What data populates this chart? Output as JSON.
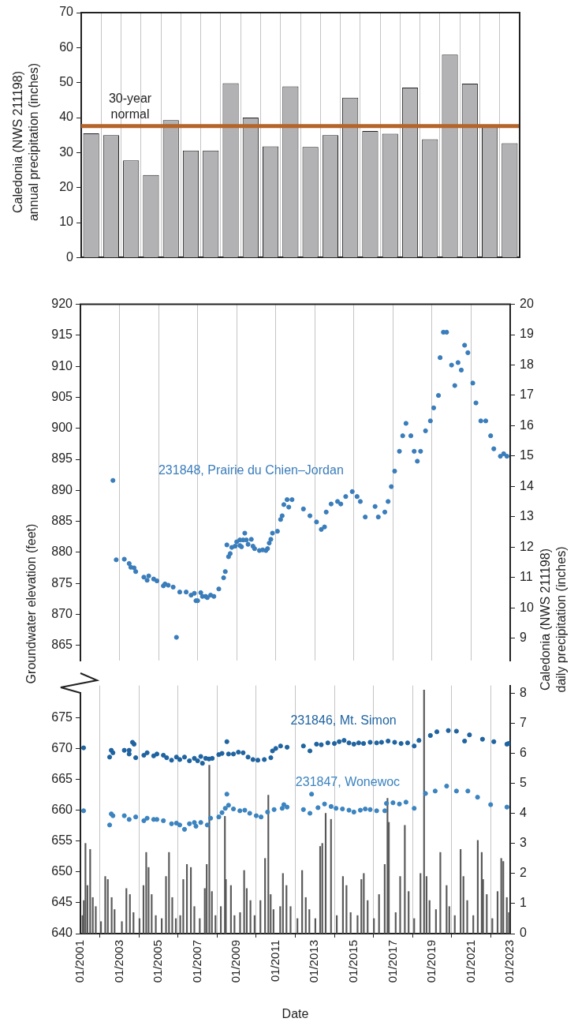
{
  "chart_data": [
    {
      "type": "bar",
      "ylabel": "Caledonia (NWS 211198)\nannual precipitation (inches)",
      "categories": [
        null,
        null,
        null,
        null,
        null,
        null,
        null,
        null,
        null,
        null,
        null,
        null,
        null,
        null,
        null,
        null,
        null,
        null,
        null,
        null,
        null,
        null
      ],
      "values": [
        35.5,
        35,
        27.8,
        23.6,
        39.3,
        30.6,
        30.6,
        49.8,
        40,
        31.8,
        48.9,
        31.6,
        35,
        45.7,
        36.2,
        35.4,
        48.6,
        33.8,
        58,
        49.7,
        37.5,
        32.7
      ],
      "color": "#b2b2b5",
      "ylim": [
        0,
        70
      ],
      "yticks": [
        0,
        10,
        20,
        30,
        40,
        50,
        60,
        70
      ],
      "grid": "x",
      "ref_lines": [
        {
          "axis": "y",
          "value": 37.6,
          "label": "30-year normal",
          "color": "#b5642a"
        }
      ]
    },
    {
      "type": "scatter",
      "ylabel": "Groundwater elevation (feet)",
      "y2label": "Caledonia (NWS 211198)\ndaily precipitation (inches)",
      "xlim": [
        "2001-01",
        "2023-01"
      ],
      "xticks": [
        "2001-01",
        "2003-01",
        "2005-01",
        "2007-01",
        "2009-01",
        "2011-01",
        "2013-01",
        "2015-01",
        "2017-01",
        "2019-01",
        "2021-01",
        "2023-01"
      ],
      "ylim": [
        862.5,
        920
      ],
      "yticks": [
        865,
        870,
        875,
        880,
        885,
        890,
        895,
        900,
        905,
        910,
        915,
        920
      ],
      "y2lim": [
        8.25,
        20
      ],
      "y2ticks": [
        9,
        10,
        11,
        12,
        13,
        14,
        15,
        16,
        17,
        18,
        19,
        20
      ],
      "tick_labels": "y",
      "grid": "x",
      "marker": "circle",
      "series": [
        {
          "name": "231848, Prairie du Chien–Jordan",
          "color": "#3a7dbb",
          "x": [
            "2002-09",
            "2002-11",
            "2003-04",
            "2003-07",
            "2003-08",
            "2003-10",
            "2003-11",
            "2004-04",
            "2004-06",
            "2004-07",
            "2004-10",
            "2004-12",
            "2005-04",
            "2005-05",
            "2005-07",
            "2005-10",
            "2005-12",
            "2006-02",
            "2006-06",
            "2006-09",
            "2006-11",
            "2006-12",
            "2007-01",
            "2007-03",
            "2007-04",
            "2007-06",
            "2007-07",
            "2007-09",
            "2007-11",
            "2008-02",
            "2008-05",
            "2008-06",
            "2008-07",
            "2008-08",
            "2008-09",
            "2008-10",
            "2008-12",
            "2009-01",
            "2009-03",
            "2009-03",
            "2009-04",
            "2009-05",
            "2009-06",
            "2009-07",
            "2009-08",
            "2009-10",
            "2009-11",
            "2009-12",
            "2010-03",
            "2010-05",
            "2010-07",
            "2010-08",
            "2010-09",
            "2010-10",
            "2010-11",
            "2011-02",
            "2011-04",
            "2011-05",
            "2011-06",
            "2011-08",
            "2011-09",
            "2011-11",
            "2012-06",
            "2012-10",
            "2013-02",
            "2013-05",
            "2013-07",
            "2013-08",
            "2013-11",
            "2014-03",
            "2014-05",
            "2014-08",
            "2014-12",
            "2015-03",
            "2015-05",
            "2015-08",
            "2016-02",
            "2016-04",
            "2016-08",
            "2016-10",
            "2016-12",
            "2017-02",
            "2017-05",
            "2017-07",
            "2017-09",
            "2017-12",
            "2018-02",
            "2018-04",
            "2018-06",
            "2018-09",
            "2018-12",
            "2019-02",
            "2019-05",
            "2019-06",
            "2019-08",
            "2019-10",
            "2020-01",
            "2020-03",
            "2020-05",
            "2020-07",
            "2020-09",
            "2020-11",
            "2021-02",
            "2021-04",
            "2021-07",
            "2021-10",
            "2022-01",
            "2022-03",
            "2022-07",
            "2022-09",
            "2022-11"
          ],
          "values": [
            891.6,
            878.8,
            878.9,
            878.2,
            877.6,
            877.5,
            876.9,
            876,
            875.5,
            876.2,
            875.7,
            875.4,
            874.6,
            874.9,
            874.7,
            874.4,
            866.3,
            873.6,
            873.6,
            873.1,
            873.4,
            872.2,
            872.2,
            873.5,
            872.9,
            872.9,
            872.7,
            873.1,
            872.9,
            874.1,
            875.9,
            876.9,
            881.2,
            879.3,
            879.8,
            880.8,
            881,
            881.7,
            881.1,
            882,
            880.9,
            882,
            883.1,
            882,
            881.3,
            882.1,
            881,
            880.6,
            880.3,
            880.4,
            880.3,
            880.6,
            881.5,
            882.1,
            883.1,
            883.4,
            885.3,
            885.9,
            887.7,
            888.5,
            887.3,
            888.5,
            887,
            885.9,
            884.9,
            883.7,
            884.1,
            886.5,
            887.8,
            888.2,
            887.8,
            889,
            889.8,
            889,
            888.2,
            885.7,
            887.4,
            885.7,
            886.5,
            888.2,
            890.6,
            893.1,
            896.3,
            898.8,
            900.8,
            898.8,
            896.3,
            894.7,
            896.3,
            899.6,
            901.2,
            903.3,
            905.3,
            911.4,
            915.5,
            915.5,
            910.2,
            906.9,
            910.6,
            909.4,
            913.4,
            912.2,
            907.3,
            904.1,
            901.2,
            901.2,
            898.8,
            896.7,
            895.5,
            895.9,
            895.5
          ]
        }
      ]
    },
    {
      "type": "scatter",
      "xlabel": "Date",
      "xlim": [
        "2001-01",
        "2023-01"
      ],
      "xticks": [
        {
          "value": "2001-01",
          "label": "01/2001"
        },
        {
          "value": "2003-01",
          "label": "01/2003"
        },
        {
          "value": "2005-01",
          "label": "01/2005"
        },
        {
          "value": "2007-01",
          "label": "01/2007"
        },
        {
          "value": "2009-01",
          "label": "01/2009"
        },
        {
          "value": "2011-01",
          "label": "01/2011"
        },
        {
          "value": "2013-01",
          "label": "01/2013"
        },
        {
          "value": "2015-01",
          "label": "01/2015"
        },
        {
          "value": "2017-01",
          "label": "01/2017"
        },
        {
          "value": "2019-01",
          "label": "01/2019"
        },
        {
          "value": "2021-01",
          "label": "01/2021"
        },
        {
          "value": "2023-01",
          "label": "01/2023"
        }
      ],
      "ylim": [
        640,
        680.2
      ],
      "yticks": [
        640,
        645,
        650,
        655,
        660,
        665,
        670,
        675
      ],
      "y2lim": [
        0,
        8.25
      ],
      "y2ticks": [
        0,
        1,
        2,
        3,
        4,
        5,
        6,
        7,
        8
      ],
      "grid": "x",
      "marker": "circle",
      "series": [
        {
          "name": "231846, Mt. Simon",
          "color": "#1f64a0",
          "x": [
            "2001-03",
            "2002-07",
            "2002-08",
            "2002-09",
            "2003-04",
            "2003-07",
            "2003-07",
            "2003-09",
            "2003-10",
            "2003-11",
            "2004-04",
            "2004-06",
            "2004-10",
            "2004-12",
            "2005-04",
            "2005-06",
            "2005-09",
            "2005-12",
            "2006-02",
            "2006-05",
            "2006-08",
            "2006-11",
            "2007-01",
            "2007-03",
            "2007-04",
            "2007-06",
            "2007-08",
            "2007-10",
            "2008-02",
            "2008-04",
            "2008-07",
            "2008-08",
            "2008-11",
            "2009-02",
            "2009-05",
            "2009-08",
            "2009-11",
            "2010-02",
            "2010-06",
            "2010-10",
            "2010-11",
            "2011-01",
            "2011-04",
            "2011-08",
            "2012-06",
            "2012-10",
            "2013-02",
            "2013-05",
            "2013-09",
            "2014-01",
            "2014-04",
            "2014-07",
            "2014-10",
            "2015-01",
            "2015-04",
            "2015-07",
            "2015-11",
            "2016-03",
            "2016-06",
            "2016-10",
            "2017-02",
            "2017-06",
            "2017-10",
            "2018-02",
            "2018-05",
            "2018-12",
            "2019-04",
            "2019-11",
            "2020-04",
            "2020-09",
            "2020-12",
            "2021-08",
            "2022-03",
            "2022-11",
            "2022-12"
          ],
          "values": [
            670.1,
            668.6,
            669.7,
            669.3,
            669.7,
            669.7,
            669.1,
            671,
            670.7,
            668.5,
            668.9,
            669.3,
            668.8,
            669.1,
            668.9,
            668.5,
            668.1,
            668.6,
            668.2,
            668.6,
            668,
            668.4,
            668,
            668.7,
            667.6,
            668.4,
            668.3,
            668.4,
            669,
            669.2,
            671.1,
            669.1,
            669.1,
            669.4,
            669.3,
            668.6,
            668.2,
            668.1,
            668.2,
            668.5,
            669.6,
            670,
            670.4,
            670.2,
            670.4,
            669.6,
            670.7,
            670.6,
            670.9,
            670.8,
            671.1,
            671.3,
            670.9,
            670.7,
            670.9,
            670.8,
            671,
            670.9,
            671,
            671.2,
            671,
            670.8,
            670.9,
            670.4,
            671.3,
            672.1,
            672.7,
            672.9,
            672.8,
            671.2,
            672.2,
            671.5,
            671.1,
            670.7,
            670.8
          ]
        },
        {
          "name": "231847, Wonewoc",
          "color": "#3b84c0",
          "x": [
            "2001-03",
            "2002-07",
            "2002-08",
            "2002-09",
            "2003-04",
            "2003-07",
            "2003-11",
            "2004-04",
            "2004-06",
            "2004-10",
            "2004-12",
            "2005-04",
            "2005-09",
            "2005-12",
            "2006-02",
            "2006-05",
            "2006-08",
            "2006-11",
            "2006-12",
            "2007-03",
            "2007-07",
            "2007-09",
            "2008-02",
            "2008-04",
            "2008-06",
            "2008-07",
            "2008-08",
            "2008-11",
            "2009-03",
            "2009-06",
            "2009-09",
            "2010-01",
            "2010-04",
            "2010-08",
            "2010-12",
            "2011-05",
            "2011-06",
            "2011-08",
            "2012-06",
            "2012-10",
            "2012-11",
            "2013-03",
            "2013-07",
            "2013-11",
            "2014-02",
            "2014-06",
            "2014-10",
            "2015-01",
            "2015-05",
            "2015-08",
            "2015-11",
            "2016-03",
            "2016-08",
            "2016-09",
            "2017-01",
            "2017-05",
            "2017-09",
            "2018-02",
            "2018-09",
            "2019-03",
            "2019-10",
            "2020-04",
            "2020-11",
            "2021-05",
            "2022-01",
            "2022-11"
          ],
          "values": [
            659.9,
            657.6,
            659.4,
            659.1,
            659.1,
            658.5,
            658.9,
            658.3,
            658.7,
            658.5,
            658.5,
            658.3,
            657.8,
            657.9,
            657.6,
            656.9,
            657.8,
            658,
            657.4,
            658,
            657.6,
            658.7,
            658.9,
            659.6,
            660.3,
            662.6,
            660.8,
            660.2,
            659.9,
            660,
            659.5,
            659.1,
            658.9,
            659.7,
            660.1,
            660.3,
            660.9,
            660.5,
            660.1,
            659.5,
            662.6,
            660.4,
            661,
            660.6,
            660.3,
            660.2,
            660,
            659.7,
            660,
            660.2,
            660.1,
            659.9,
            659.9,
            661.1,
            661.2,
            661,
            661.3,
            660.3,
            662.7,
            663.1,
            663.9,
            663.1,
            663.1,
            662.1,
            660.9,
            660.5
          ]
        },
        {
          "type": "bar",
          "axis": "y2",
          "color": "#595959",
          "x": [
            "2001-02-10",
            "2001-03-05",
            "2001-04-05",
            "2001-05-12",
            "2001-07-02",
            "2001-08-20",
            "2001-10-15",
            "2002-01-20",
            "2002-04-10",
            "2002-05-28",
            "2002-08-08",
            "2002-10-01",
            "2003-02-15",
            "2003-05-10",
            "2003-07-15",
            "2003-09-20",
            "2004-01-10",
            "2004-03-25",
            "2004-05-15",
            "2004-06-28",
            "2004-08-25",
            "2004-11-10",
            "2005-03-01",
            "2005-05-20",
            "2005-07-15",
            "2005-09-14",
            "2005-11-20",
            "2006-02-10",
            "2006-04-08",
            "2006-06-15",
            "2006-08-28",
            "2006-11-01",
            "2007-02-10",
            "2007-05-15",
            "2007-06-20",
            "2007-08-08",
            "2007-09-25",
            "2007-12-01",
            "2008-03-10",
            "2008-05-25",
            "2008-06-12",
            "2008-09-15",
            "2008-11-20",
            "2009-03-05",
            "2009-05-20",
            "2009-07-08",
            "2009-09-15",
            "2009-12-01",
            "2010-03-20",
            "2010-06-15",
            "2010-08-15",
            "2010-09-28",
            "2010-11-20",
            "2011-03-25",
            "2011-05-15",
            "2011-07-20",
            "2011-10-05",
            "2012-02-10",
            "2012-05-08",
            "2012-07-15",
            "2012-09-20",
            "2013-01-10",
            "2013-04-10",
            "2013-05-20",
            "2013-07-22",
            "2013-10-30",
            "2014-02-15",
            "2014-06-10",
            "2014-08-15",
            "2014-11-01",
            "2015-03-10",
            "2015-05-20",
            "2015-07-05",
            "2015-09-15",
            "2016-01-10",
            "2016-04-15",
            "2016-07-30",
            "2016-09-20",
            "2016-10-15",
            "2017-02-20",
            "2017-05-15",
            "2017-08-10",
            "2017-10-20",
            "2018-02-01",
            "2018-05-30",
            "2018-08-05",
            "2018-09-20",
            "2018-11-15",
            "2019-03-15",
            "2019-06-05",
            "2019-09-30",
            "2019-11-20",
            "2020-03-01",
            "2020-06-18",
            "2020-08-10",
            "2020-10-20",
            "2021-02-10",
            "2021-05-05",
            "2021-07-18",
            "2021-08-12",
            "2021-10-20",
            "2022-02-01",
            "2022-05-10",
            "2022-07-18",
            "2022-08-25",
            "2022-10-30",
            "2022-12-10"
          ],
          "values": [
            0.6,
            1.1,
            3,
            1.6,
            2.8,
            1.2,
            0.9,
            0.4,
            1.9,
            1.8,
            1.2,
            0.8,
            0.4,
            1.5,
            1.3,
            0.7,
            0.5,
            1.6,
            2.7,
            2.2,
            1.3,
            0.6,
            0.5,
            1.9,
            2.7,
            1.2,
            0.5,
            0.6,
            1.8,
            2.3,
            2.2,
            0.9,
            0.5,
            1.5,
            2.3,
            5.6,
            1.4,
            0.6,
            0.9,
            3.9,
            1.8,
            1.6,
            0.6,
            0.7,
            2.1,
            1.5,
            1.1,
            0.6,
            1.1,
            2.5,
            4.6,
            1.3,
            0.8,
            0.9,
            2,
            1.6,
            0.9,
            0.5,
            2.1,
            1.2,
            0.8,
            0.5,
            2.9,
            3,
            4,
            3.8,
            0.6,
            1.9,
            1.6,
            0.7,
            0.6,
            1.8,
            2,
            1.1,
            0.5,
            1.3,
            2.3,
            4.5,
            3.7,
            0.7,
            1.9,
            3.6,
            1.4,
            0.5,
            2,
            8.1,
            1.9,
            1.1,
            0.8,
            2.7,
            1.6,
            0.9,
            0.6,
            2.8,
            1.9,
            1.1,
            0.6,
            3.1,
            2.7,
            1.8,
            1.3,
            0.5,
            1.4,
            2.5,
            2.4,
            1.2,
            0.7
          ]
        }
      ]
    }
  ]
}
